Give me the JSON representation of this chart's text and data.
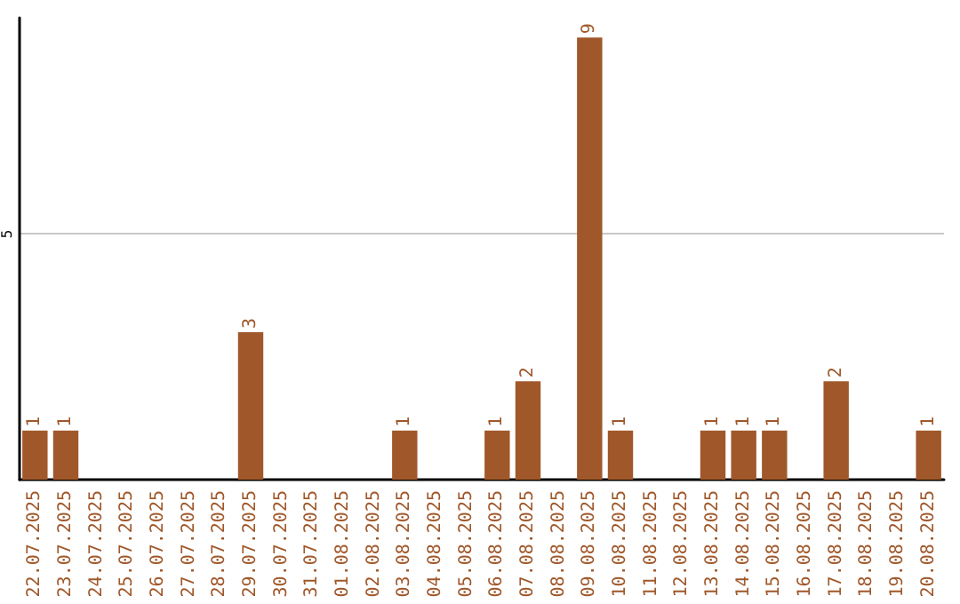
{
  "chart_data": {
    "type": "bar",
    "categories": [
      "22.07.2025",
      "23.07.2025",
      "24.07.2025",
      "25.07.2025",
      "26.07.2025",
      "27.07.2025",
      "28.07.2025",
      "29.07.2025",
      "30.07.2025",
      "31.07.2025",
      "01.08.2025",
      "02.08.2025",
      "03.08.2025",
      "04.08.2025",
      "05.08.2025",
      "06.08.2025",
      "07.08.2025",
      "08.08.2025",
      "09.08.2025",
      "10.08.2025",
      "11.08.2025",
      "12.08.2025",
      "13.08.2025",
      "14.08.2025",
      "15.08.2025",
      "16.08.2025",
      "17.08.2025",
      "18.08.2025",
      "19.08.2025",
      "20.08.2025"
    ],
    "values": [
      1,
      1,
      0,
      0,
      0,
      0,
      0,
      3,
      0,
      0,
      0,
      0,
      1,
      0,
      0,
      1,
      2,
      0,
      9,
      1,
      0,
      0,
      1,
      1,
      1,
      0,
      2,
      0,
      0,
      1
    ],
    "value_labels": [
      "1",
      "1",
      null,
      null,
      null,
      null,
      null,
      "3",
      null,
      null,
      null,
      null,
      "1",
      null,
      null,
      "1",
      "2",
      null,
      "9",
      "1",
      null,
      null,
      "1",
      "1",
      "1",
      null,
      "2",
      null,
      null,
      "1"
    ],
    "color": "#a0582a",
    "ylim": [
      0,
      9.4
    ],
    "yticks": [
      5
    ],
    "grid": "y"
  }
}
